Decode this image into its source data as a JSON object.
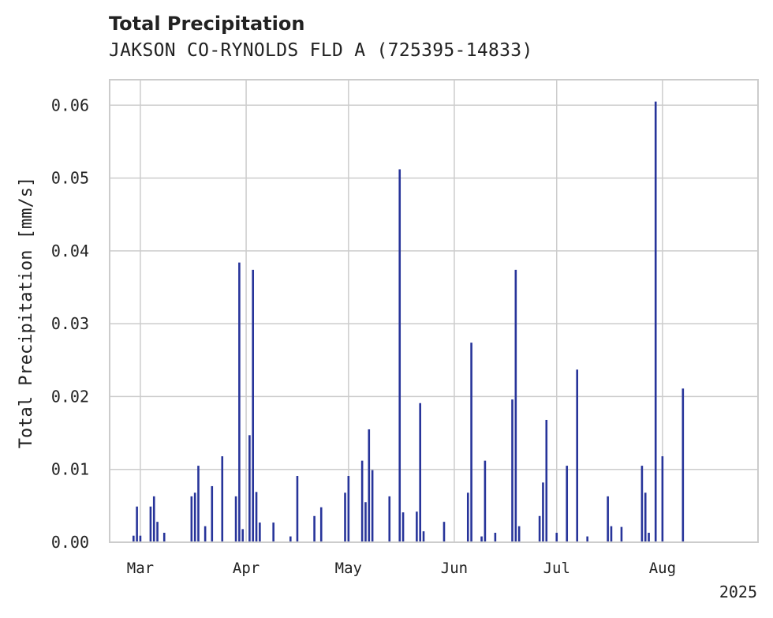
{
  "chart_data": {
    "type": "bar",
    "title": "Total Precipitation",
    "subtitle": "JAKSON CO-RYNOLDS FLD A (725395-14833)",
    "ylabel": "Total Precipitation [mm/s]",
    "xlabel": "",
    "year_label": "2025",
    "ylim": [
      0,
      0.0635
    ],
    "xlim": [
      "2025-02-20",
      "2025-08-29"
    ],
    "yticks": [
      0.0,
      0.01,
      0.02,
      0.03,
      0.04,
      0.05,
      0.06
    ],
    "ytick_labels": [
      "0.00",
      "0.01",
      "0.02",
      "0.03",
      "0.04",
      "0.05",
      "0.06"
    ],
    "xticks": [
      {
        "date": "2025-03-01",
        "label": "Mar"
      },
      {
        "date": "2025-04-01",
        "label": "Apr"
      },
      {
        "date": "2025-05-01",
        "label": "May"
      },
      {
        "date": "2025-06-01",
        "label": "Jun"
      },
      {
        "date": "2025-07-01",
        "label": "Jul"
      },
      {
        "date": "2025-08-01",
        "label": "Aug"
      }
    ],
    "grid": true,
    "bar_color": "#27349a",
    "series": [
      {
        "x": [
          "2025-02-27",
          "2025-02-28",
          "2025-03-01",
          "2025-03-04",
          "2025-03-05",
          "2025-03-06",
          "2025-03-08",
          "2025-03-16",
          "2025-03-17",
          "2025-03-18",
          "2025-03-20",
          "2025-03-22",
          "2025-03-25",
          "2025-03-29",
          "2025-03-30",
          "2025-03-31",
          "2025-04-02",
          "2025-04-03",
          "2025-04-04",
          "2025-04-05",
          "2025-04-09",
          "2025-04-14",
          "2025-04-16",
          "2025-04-21",
          "2025-04-23",
          "2025-04-30",
          "2025-05-01",
          "2025-05-05",
          "2025-05-06",
          "2025-05-07",
          "2025-05-08",
          "2025-05-13",
          "2025-05-16",
          "2025-05-17",
          "2025-05-21",
          "2025-05-22",
          "2025-05-23",
          "2025-05-29",
          "2025-06-05",
          "2025-06-06",
          "2025-06-09",
          "2025-06-10",
          "2025-06-13",
          "2025-06-18",
          "2025-06-19",
          "2025-06-20",
          "2025-06-26",
          "2025-06-27",
          "2025-06-28",
          "2025-07-01",
          "2025-07-04",
          "2025-07-07",
          "2025-07-10",
          "2025-07-16",
          "2025-07-17",
          "2025-07-20",
          "2025-07-26",
          "2025-07-27",
          "2025-07-28",
          "2025-07-30",
          "2025-08-01",
          "2025-08-07"
        ],
        "values": [
          0.0009,
          0.0049,
          0.0009,
          0.0049,
          0.0063,
          0.0028,
          0.0013,
          0.0063,
          0.0068,
          0.0105,
          0.0022,
          0.0077,
          0.0118,
          0.0063,
          0.0384,
          0.0018,
          0.0147,
          0.0374,
          0.0069,
          0.0027,
          0.0027,
          0.0008,
          0.0091,
          0.0036,
          0.0048,
          0.0068,
          0.0091,
          0.0112,
          0.0055,
          0.0155,
          0.0099,
          0.0063,
          0.0512,
          0.0041,
          0.0042,
          0.0191,
          0.0015,
          0.0028,
          0.0068,
          0.0274,
          0.0008,
          0.0112,
          0.0013,
          0.0196,
          0.0374,
          0.0022,
          0.0036,
          0.0082,
          0.0168,
          0.0013,
          0.0105,
          0.0237,
          0.0008,
          0.0063,
          0.0022,
          0.0021,
          0.0105,
          0.0068,
          0.0013,
          0.0605,
          0.0118,
          0.0211
        ]
      }
    ]
  }
}
